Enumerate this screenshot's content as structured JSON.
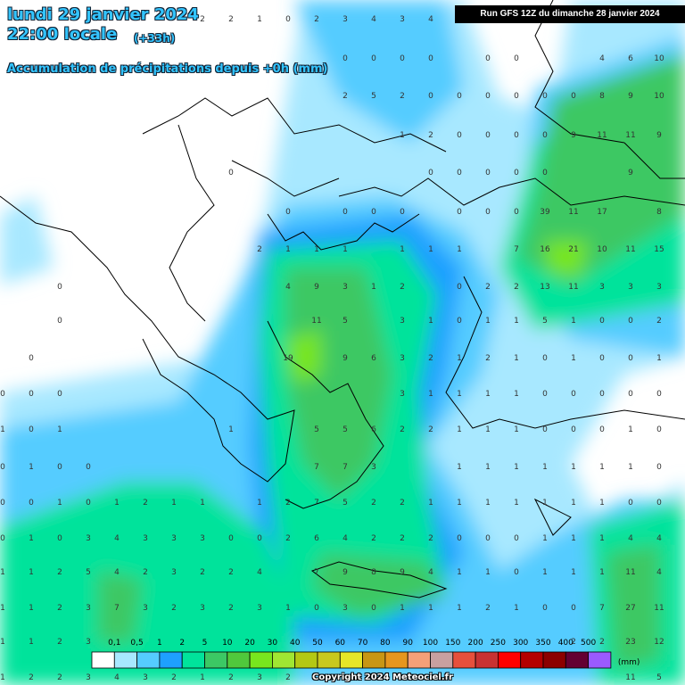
{
  "header": {
    "date": "lundi 29 janvier 2024",
    "time": "22:00 locale",
    "offset": "(+33h)",
    "subtitle": "Accumulation de précipitations depuis +0h (mm)",
    "run": "Run GFS 12Z du dimanche 28 janvier 2024"
  },
  "grid": {
    "rows": [
      [
        null,
        null,
        null,
        null,
        null,
        null,
        null,
        2,
        2,
        1,
        0,
        2,
        3,
        4,
        3,
        4,
        null,
        null,
        null,
        null,
        null,
        null,
        null,
        null
      ],
      [
        null,
        null,
        null,
        null,
        null,
        null,
        null,
        null,
        null,
        null,
        null,
        null,
        0,
        0,
        0,
        0,
        null,
        0,
        0,
        null,
        null,
        4,
        6,
        10
      ],
      [
        null,
        null,
        null,
        null,
        null,
        null,
        null,
        null,
        null,
        null,
        null,
        null,
        2,
        5,
        2,
        0,
        0,
        0,
        0,
        0,
        0,
        8,
        9,
        10
      ],
      [
        null,
        null,
        null,
        null,
        null,
        null,
        null,
        null,
        null,
        null,
        null,
        null,
        null,
        null,
        1,
        2,
        0,
        0,
        0,
        0,
        9,
        11,
        11,
        9
      ],
      [
        null,
        null,
        null,
        null,
        null,
        null,
        null,
        null,
        0,
        null,
        null,
        null,
        null,
        null,
        null,
        0,
        0,
        0,
        0,
        0,
        null,
        null,
        9,
        null
      ],
      [
        null,
        null,
        null,
        null,
        null,
        null,
        null,
        null,
        null,
        null,
        0,
        null,
        0,
        0,
        0,
        null,
        0,
        0,
        0,
        39,
        11,
        17,
        null,
        8
      ],
      [
        null,
        null,
        null,
        null,
        null,
        null,
        null,
        null,
        null,
        2,
        1,
        1,
        1,
        null,
        1,
        1,
        1,
        null,
        7,
        16,
        21,
        10,
        11,
        15
      ],
      [
        null,
        null,
        0,
        null,
        null,
        null,
        null,
        null,
        null,
        null,
        4,
        9,
        3,
        1,
        2,
        null,
        0,
        2,
        2,
        13,
        11,
        3,
        3,
        3
      ],
      [
        null,
        null,
        0,
        null,
        null,
        null,
        null,
        null,
        null,
        null,
        null,
        11,
        5,
        null,
        3,
        1,
        0,
        1,
        1,
        5,
        1,
        0,
        0,
        2
      ],
      [
        null,
        0,
        null,
        null,
        null,
        null,
        null,
        null,
        null,
        null,
        19,
        null,
        9,
        6,
        3,
        2,
        1,
        2,
        1,
        0,
        1,
        0,
        0,
        1
      ],
      [
        0,
        0,
        0,
        null,
        null,
        null,
        null,
        null,
        null,
        null,
        null,
        null,
        null,
        null,
        3,
        1,
        1,
        1,
        1,
        0,
        0,
        0,
        0,
        0
      ],
      [
        1,
        0,
        1,
        null,
        null,
        null,
        null,
        null,
        1,
        null,
        null,
        5,
        5,
        6,
        2,
        2,
        1,
        1,
        1,
        0,
        0,
        0,
        1,
        0
      ],
      [
        0,
        1,
        0,
        0,
        null,
        null,
        null,
        null,
        null,
        null,
        null,
        7,
        7,
        3,
        null,
        null,
        1,
        1,
        1,
        1,
        1,
        1,
        1,
        0
      ],
      [
        0,
        0,
        1,
        0,
        1,
        2,
        1,
        1,
        null,
        1,
        2,
        7,
        5,
        2,
        2,
        1,
        1,
        1,
        1,
        1,
        1,
        1,
        0,
        0
      ],
      [
        0,
        1,
        0,
        3,
        4,
        3,
        3,
        3,
        0,
        0,
        2,
        6,
        4,
        2,
        2,
        2,
        0,
        0,
        0,
        1,
        1,
        1,
        4,
        4
      ],
      [
        1,
        1,
        2,
        5,
        4,
        2,
        3,
        2,
        2,
        4,
        null,
        7,
        9,
        8,
        9,
        4,
        1,
        1,
        0,
        1,
        1,
        1,
        11,
        4
      ],
      [
        1,
        1,
        2,
        3,
        7,
        3,
        2,
        3,
        2,
        3,
        1,
        0,
        3,
        0,
        1,
        1,
        1,
        2,
        1,
        0,
        0,
        7,
        27,
        11
      ],
      [
        1,
        1,
        2,
        3,
        null,
        null,
        null,
        null,
        null,
        null,
        null,
        null,
        null,
        null,
        null,
        null,
        null,
        null,
        null,
        null,
        2,
        2,
        23,
        12
      ],
      [
        1,
        2,
        2,
        3,
        4,
        3,
        2,
        1,
        2,
        3,
        2,
        null,
        null,
        null,
        null,
        null,
        null,
        null,
        null,
        null,
        null,
        null,
        11,
        5
      ]
    ]
  },
  "legend": {
    "unit": "(mm)",
    "labels": [
      "0,1",
      "0,5",
      "1",
      "2",
      "5",
      "10",
      "20",
      "30",
      "40",
      "50",
      "60",
      "70",
      "80",
      "90",
      "100",
      "150",
      "200",
      "250",
      "300",
      "350",
      "400",
      "500"
    ],
    "colors": [
      "#ffffff",
      "#a8e8ff",
      "#55ccff",
      "#1ea0ff",
      "#00e39b",
      "#3cc864",
      "#50c83c",
      "#78e61e",
      "#a0e632",
      "#b4c814",
      "#c8c81e",
      "#e6e628",
      "#c89614",
      "#e6961e",
      "#f5a078",
      "#c8a0a0",
      "#e6503c",
      "#c83232",
      "#ff0000",
      "#b40000",
      "#8c0000",
      "#640032",
      "#9b5aff"
    ]
  },
  "footer": {
    "copyright": "Copyright 2024 Meteociel.fr"
  }
}
